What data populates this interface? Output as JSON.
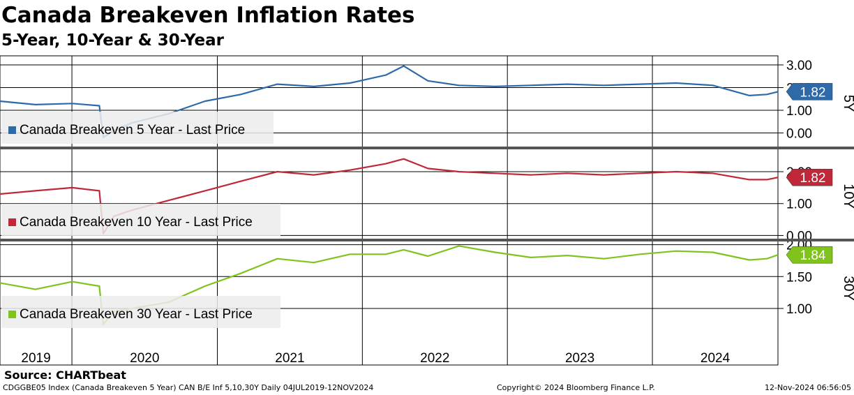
{
  "title": "Canada Breakeven Inflation Rates",
  "subtitle": "5-Year, 10-Year & 30-Year",
  "source": "Source: CHARTbeat",
  "footer": {
    "left": "CDGGBE05 Index (Canada Breakeven 5 Year) CAN B/E Inf 5,10,30Y  Daily 04JUL2019-12NOV2024",
    "center": "Copyright© 2024 Bloomberg Finance L.P.",
    "right": "12-Nov-2024 06:56:05"
  },
  "chart_data": [
    {
      "type": "line",
      "panel": "5Y",
      "legend": "Canada Breakeven 5 Year - Last Price",
      "side_label": "5Y",
      "last_value": "1.82",
      "color": "#2e6aa8",
      "ylim": [
        -0.6,
        3.4
      ],
      "yticks": [
        "3.00",
        "2.00",
        "1.00",
        "0.00"
      ],
      "x": [
        "2019-07-04",
        "2019-10-01",
        "2020-01-02",
        "2020-03-10",
        "2020-03-20",
        "2020-04-15",
        "2020-06-01",
        "2020-09-01",
        "2020-12-01",
        "2021-03-01",
        "2021-06-01",
        "2021-09-01",
        "2021-12-01",
        "2022-03-01",
        "2022-04-15",
        "2022-06-15",
        "2022-09-01",
        "2022-12-01",
        "2023-03-01",
        "2023-06-01",
        "2023-09-01",
        "2023-12-01",
        "2024-03-01",
        "2024-06-01",
        "2024-09-01",
        "2024-10-15",
        "2024-11-12"
      ],
      "y": [
        1.4,
        1.25,
        1.3,
        1.2,
        -0.2,
        0.1,
        0.45,
        0.85,
        1.4,
        1.7,
        2.15,
        2.05,
        2.2,
        2.55,
        2.95,
        2.3,
        2.1,
        2.05,
        2.1,
        2.15,
        2.1,
        2.15,
        2.2,
        2.1,
        1.65,
        1.7,
        1.82
      ]
    },
    {
      "type": "line",
      "panel": "10Y",
      "legend": "Canada Breakeven 10 Year - Last Price",
      "side_label": "10Y",
      "last_value": "1.82",
      "color": "#c0283a",
      "ylim": [
        -0.1,
        2.7
      ],
      "yticks": [
        "2.00",
        "1.00",
        "0.00"
      ],
      "x": [
        "2019-07-04",
        "2019-10-01",
        "2020-01-02",
        "2020-03-10",
        "2020-03-20",
        "2020-04-15",
        "2020-06-01",
        "2020-09-01",
        "2020-12-01",
        "2021-03-01",
        "2021-06-01",
        "2021-09-01",
        "2021-12-01",
        "2022-03-01",
        "2022-04-15",
        "2022-06-15",
        "2022-09-01",
        "2022-12-01",
        "2023-03-01",
        "2023-06-01",
        "2023-09-01",
        "2023-12-01",
        "2024-03-01",
        "2024-06-01",
        "2024-09-01",
        "2024-10-15",
        "2024-11-12"
      ],
      "y": [
        1.3,
        1.4,
        1.5,
        1.4,
        0.05,
        0.6,
        0.8,
        1.1,
        1.4,
        1.7,
        2.0,
        1.9,
        2.05,
        2.25,
        2.4,
        2.1,
        2.0,
        1.95,
        1.9,
        1.95,
        1.9,
        1.95,
        2.0,
        1.95,
        1.75,
        1.75,
        1.82
      ]
    },
    {
      "type": "line",
      "panel": "30Y",
      "legend": "Canada Breakeven 30 Year - Last Price",
      "side_label": "30Y",
      "last_value": "1.84",
      "color": "#7fc31c",
      "ylim": [
        0.65,
        2.05
      ],
      "yticks": [
        "2.00",
        "1.50",
        "1.00"
      ],
      "x": [
        "2019-07-04",
        "2019-10-01",
        "2020-01-02",
        "2020-03-10",
        "2020-03-20",
        "2020-04-15",
        "2020-06-01",
        "2020-09-01",
        "2020-12-01",
        "2021-03-01",
        "2021-06-01",
        "2021-09-01",
        "2021-12-01",
        "2022-03-01",
        "2022-04-15",
        "2022-06-15",
        "2022-09-01",
        "2022-12-01",
        "2023-03-01",
        "2023-06-01",
        "2023-09-01",
        "2023-12-01",
        "2024-03-01",
        "2024-06-01",
        "2024-09-01",
        "2024-10-15",
        "2024-11-12"
      ],
      "y": [
        1.4,
        1.3,
        1.42,
        1.35,
        0.75,
        0.95,
        1.0,
        1.1,
        1.35,
        1.55,
        1.78,
        1.72,
        1.85,
        1.85,
        1.92,
        1.82,
        1.98,
        1.88,
        1.8,
        1.83,
        1.78,
        1.85,
        1.9,
        1.88,
        1.76,
        1.78,
        1.84
      ]
    }
  ],
  "x_axis": {
    "years": [
      "2019",
      "2020",
      "2021",
      "2022",
      "2023",
      "2024"
    ],
    "start": "2019-07-04",
    "end": "2024-11-12"
  }
}
